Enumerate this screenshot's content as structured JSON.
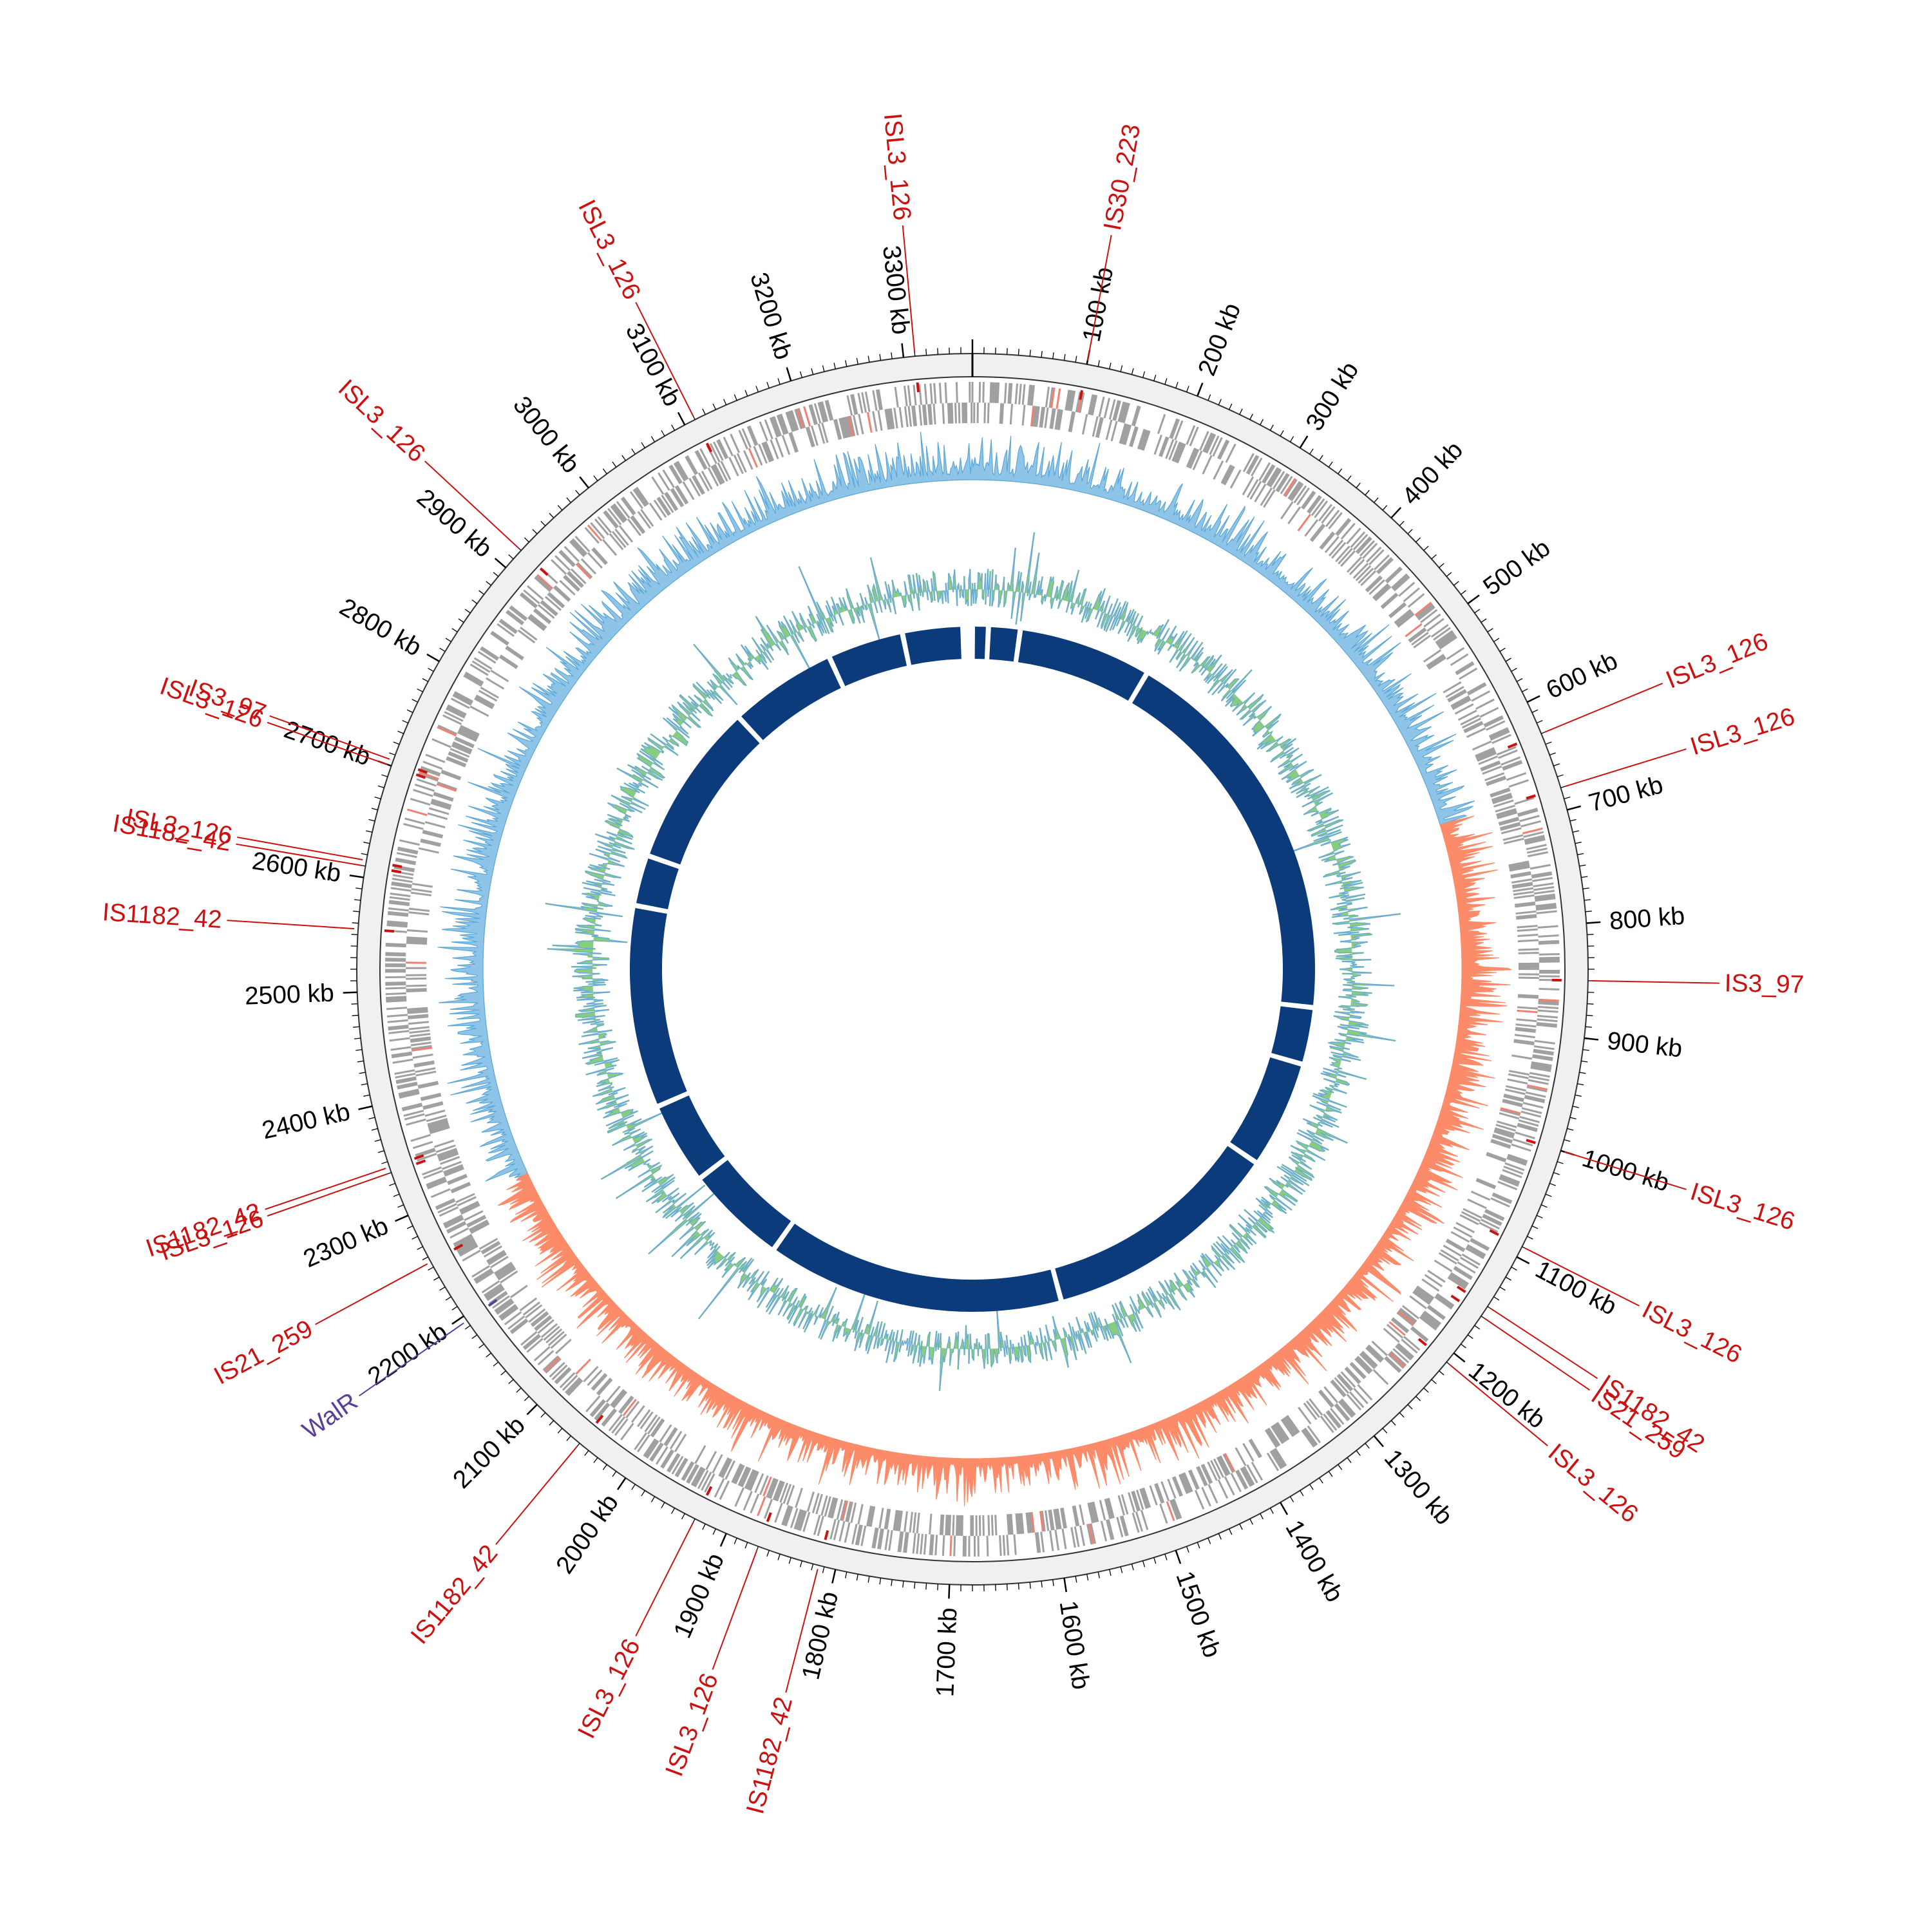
{
  "genome": {
    "total_kb": 3360,
    "tick_unit": "kb",
    "major_tick_labels": [
      "100 kb",
      "200 kb",
      "300 kb",
      "400 kb",
      "500 kb",
      "600 kb",
      "700 kb",
      "800 kb",
      "900 kb",
      "1000 kb",
      "1100 kb",
      "1200 kb",
      "1300 kb",
      "1400 kb",
      "1500 kb",
      "1600 kb",
      "1700 kb",
      "1800 kb",
      "1900 kb",
      "2000 kb",
      "2100 kb",
      "2200 kb",
      "2300 kb",
      "2400 kb",
      "2500 kb",
      "2600 kb",
      "2700 kb",
      "2800 kb",
      "2900 kb",
      "3000 kb",
      "3100 kb",
      "3200 kb",
      "3300 kb"
    ],
    "major_tick_positions_kb": [
      100,
      200,
      300,
      400,
      500,
      600,
      700,
      800,
      900,
      1000,
      1100,
      1200,
      1300,
      1400,
      1500,
      1600,
      1700,
      1800,
      1900,
      2000,
      2100,
      2200,
      2300,
      2400,
      2500,
      2600,
      2700,
      2800,
      2900,
      3000,
      3100,
      3200,
      3300
    ],
    "minor_tick_step_kb": 10
  },
  "features": [
    {
      "label": "IS30_223",
      "position_kb": 100,
      "color": "#cc1111"
    },
    {
      "label": "ISL3_126",
      "position_kb": 630,
      "color": "#cc1111"
    },
    {
      "label": "ISL3_126",
      "position_kb": 680,
      "color": "#cc1111"
    },
    {
      "label": "IS3_97",
      "position_kb": 850,
      "color": "#cc1111"
    },
    {
      "label": "ISL3_126",
      "position_kb": 1000,
      "color": "#cc1111"
    },
    {
      "label": "ISL3_126",
      "position_kb": 1090,
      "color": "#cc1111"
    },
    {
      "label": "IS1182_42",
      "position_kb": 1150,
      "color": "#cc1111"
    },
    {
      "label": "IS21_259",
      "position_kb": 1160,
      "color": "#cc1111"
    },
    {
      "label": "ISL3_126",
      "position_kb": 1210,
      "color": "#cc1111"
    },
    {
      "label": "IS1182_42",
      "position_kb": 1815,
      "color": "#cc1111"
    },
    {
      "label": "ISL3_126",
      "position_kb": 1870,
      "color": "#cc1111"
    },
    {
      "label": "ISL3_126",
      "position_kb": 1930,
      "color": "#cc1111"
    },
    {
      "label": "IS1182_42",
      "position_kb": 2050,
      "color": "#cc1111"
    },
    {
      "label": "WalR",
      "position_kb": 2195,
      "color": "#5a3e9c"
    },
    {
      "label": "IS21_259",
      "position_kb": 2255,
      "color": "#cc1111"
    },
    {
      "label": "ISL3_126",
      "position_kb": 2340,
      "color": "#cc1111"
    },
    {
      "label": "IS1182_42",
      "position_kb": 2345,
      "color": "#cc1111"
    },
    {
      "label": "IS1182_42",
      "position_kb": 2555,
      "color": "#cc1111"
    },
    {
      "label": "IS1182_42",
      "position_kb": 2610,
      "color": "#cc1111"
    },
    {
      "label": "ISL3_126",
      "position_kb": 2615,
      "color": "#cc1111"
    },
    {
      "label": "ISL3_126",
      "position_kb": 2700,
      "color": "#cc1111"
    },
    {
      "label": "IS3_97",
      "position_kb": 2705,
      "color": "#cc1111"
    },
    {
      "label": "ISL3_126",
      "position_kb": 2920,
      "color": "#cc1111"
    },
    {
      "label": "ISL3_126",
      "position_kb": 3110,
      "color": "#cc1111"
    },
    {
      "label": "ISL3_126",
      "position_kb": 3310,
      "color": "#cc1111"
    }
  ],
  "colors": {
    "backbone_ring": "#f0f0f0",
    "gene_track": "#a0a0a0",
    "gene_highlight": "#f08070",
    "skew_positive": "#8ec4e8",
    "skew_negative": "#fc8b6a",
    "skew_line": "#5aa6d6",
    "gc_content_fill": "#88cc80",
    "gc_content_line": "#6aaad8",
    "synteny_block": "#0c3b7c",
    "insertion_marker": "#cc1111"
  },
  "skew_negative_range_kb": [
    680,
    2290
  ]
}
